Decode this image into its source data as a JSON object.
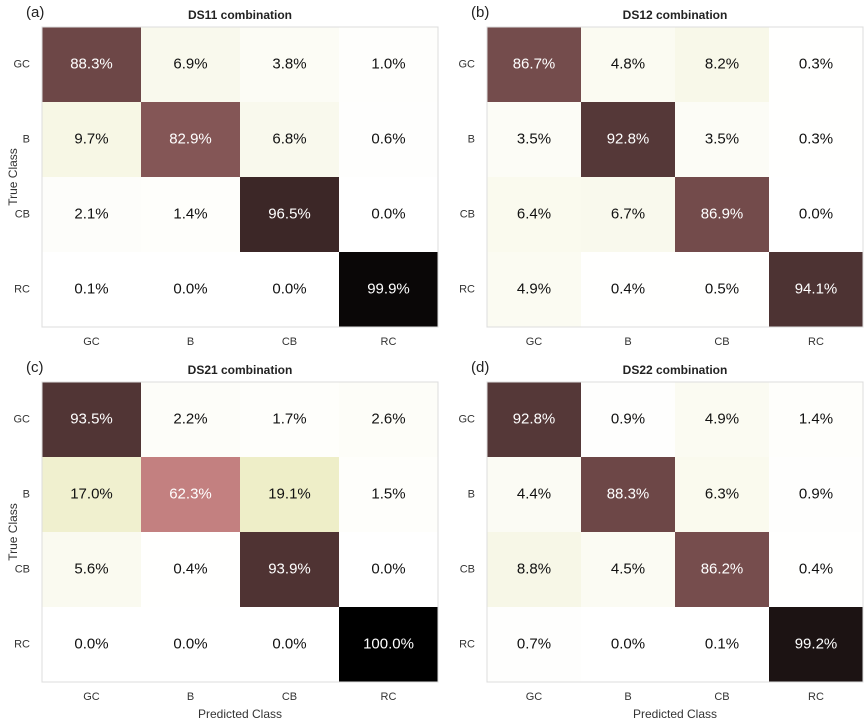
{
  "chart_data": [
    {
      "type": "heatmap",
      "panel_label": "(a)",
      "title": "DS11 combination",
      "ylabel": "True Class",
      "categories": [
        "GC",
        "B",
        "CB",
        "RC"
      ],
      "y_categories": [
        "GC",
        "B",
        "CB",
        "RC"
      ],
      "values": [
        [
          88.3,
          6.9,
          3.8,
          1.0
        ],
        [
          9.7,
          82.9,
          6.8,
          0.6
        ],
        [
          2.1,
          1.4,
          96.5,
          0.0
        ],
        [
          0.1,
          0.0,
          0.0,
          99.9
        ]
      ],
      "value_labels": [
        [
          "88.3%",
          "6.9%",
          "3.8%",
          "1.0%"
        ],
        [
          "9.7%",
          "82.9%",
          "6.8%",
          "0.6%"
        ],
        [
          "2.1%",
          "1.4%",
          "96.5%",
          "0.0%"
        ],
        [
          "0.1%",
          "0.0%",
          "0.0%",
          "99.9%"
        ]
      ],
      "colormap": "pink_r",
      "clim": [
        0,
        100
      ]
    },
    {
      "type": "heatmap",
      "panel_label": "(b)",
      "title": "DS12 combination",
      "categories": [
        "GC",
        "B",
        "CB",
        "RC"
      ],
      "y_categories": [
        "GC",
        "B",
        "CB",
        "RC"
      ],
      "values": [
        [
          86.7,
          4.8,
          8.2,
          0.3
        ],
        [
          3.5,
          92.8,
          3.5,
          0.3
        ],
        [
          6.4,
          6.7,
          86.9,
          0.0
        ],
        [
          4.9,
          0.4,
          0.5,
          94.1
        ]
      ],
      "value_labels": [
        [
          "86.7%",
          "4.8%",
          "8.2%",
          "0.3%"
        ],
        [
          "3.5%",
          "92.8%",
          "3.5%",
          "0.3%"
        ],
        [
          "6.4%",
          "6.7%",
          "86.9%",
          "0.0%"
        ],
        [
          "4.9%",
          "0.4%",
          "0.5%",
          "94.1%"
        ]
      ],
      "colormap": "pink_r",
      "clim": [
        0,
        100
      ]
    },
    {
      "type": "heatmap",
      "panel_label": "(c)",
      "title": "DS21 combination",
      "ylabel": "True Class",
      "xlabel": "Predicted Class",
      "categories": [
        "GC",
        "B",
        "CB",
        "RC"
      ],
      "y_categories": [
        "GC",
        "B",
        "CB",
        "RC"
      ],
      "values": [
        [
          93.5,
          2.2,
          1.7,
          2.6
        ],
        [
          17.0,
          62.3,
          19.1,
          1.5
        ],
        [
          5.6,
          0.4,
          93.9,
          0.0
        ],
        [
          0.0,
          0.0,
          0.0,
          100.0
        ]
      ],
      "value_labels": [
        [
          "93.5%",
          "2.2%",
          "1.7%",
          "2.6%"
        ],
        [
          "17.0%",
          "62.3%",
          "19.1%",
          "1.5%"
        ],
        [
          "5.6%",
          "0.4%",
          "93.9%",
          "0.0%"
        ],
        [
          "0.0%",
          "0.0%",
          "0.0%",
          "100.0%"
        ]
      ],
      "colormap": "pink_r",
      "clim": [
        0,
        100
      ]
    },
    {
      "type": "heatmap",
      "panel_label": "(d)",
      "title": "DS22 combination",
      "xlabel": "Predicted Class",
      "categories": [
        "GC",
        "B",
        "CB",
        "RC"
      ],
      "y_categories": [
        "GC",
        "B",
        "CB",
        "RC"
      ],
      "values": [
        [
          92.8,
          0.9,
          4.9,
          1.4
        ],
        [
          4.4,
          88.3,
          6.3,
          0.9
        ],
        [
          8.8,
          4.5,
          86.2,
          0.4
        ],
        [
          0.7,
          0.0,
          0.1,
          99.2
        ]
      ],
      "value_labels": [
        [
          "92.8%",
          "0.9%",
          "4.9%",
          "1.4%"
        ],
        [
          "4.4%",
          "88.3%",
          "6.3%",
          "0.9%"
        ],
        [
          "8.8%",
          "4.5%",
          "86.2%",
          "0.4%"
        ],
        [
          "0.7%",
          "0.0%",
          "0.1%",
          "99.2%"
        ]
      ],
      "colormap": "pink_r",
      "clim": [
        0,
        100
      ]
    }
  ]
}
